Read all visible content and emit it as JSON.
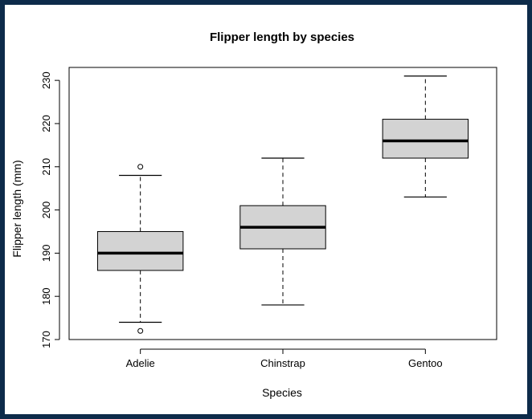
{
  "chart_data": {
    "type": "box",
    "title": "Flipper length by species",
    "xlabel": "Species",
    "ylabel": "Flipper length (mm)",
    "ylim": [
      170,
      233
    ],
    "yticks": [
      170,
      180,
      190,
      200,
      210,
      220,
      230
    ],
    "grid": false,
    "legend": "none",
    "box_fill": "#d3d3d3",
    "categories": [
      "Adelie",
      "Chinstrap",
      "Gentoo"
    ],
    "boxes": [
      {
        "category": "Adelie",
        "whisker_low": 174,
        "q1": 186,
        "median": 190,
        "q3": 195,
        "whisker_high": 208,
        "outliers": [
          210,
          172
        ]
      },
      {
        "category": "Chinstrap",
        "whisker_low": 178,
        "q1": 191,
        "median": 196,
        "q3": 201,
        "whisker_high": 212,
        "outliers": []
      },
      {
        "category": "Gentoo",
        "whisker_low": 203,
        "q1": 212,
        "median": 216,
        "q3": 221,
        "whisker_high": 231,
        "outliers": []
      }
    ]
  }
}
